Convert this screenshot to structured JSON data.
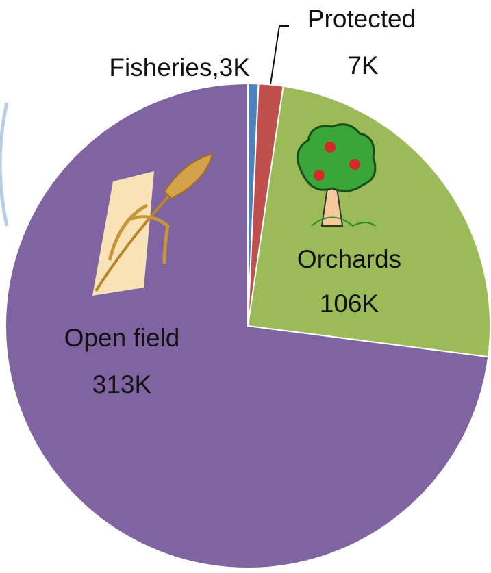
{
  "chart_data": {
    "type": "pie",
    "categories": [
      "Fisheries",
      "Protected",
      "Orchards",
      "Open field"
    ],
    "values": [
      3,
      7,
      106,
      313
    ],
    "value_labels": [
      "3K",
      "7K",
      "106K",
      "313K"
    ],
    "separator": ",",
    "colors": [
      "#4f81bd",
      "#c0504d",
      "#9bbb59",
      "#8064a2"
    ],
    "start_angle": 0,
    "direction": "clockwise"
  }
}
